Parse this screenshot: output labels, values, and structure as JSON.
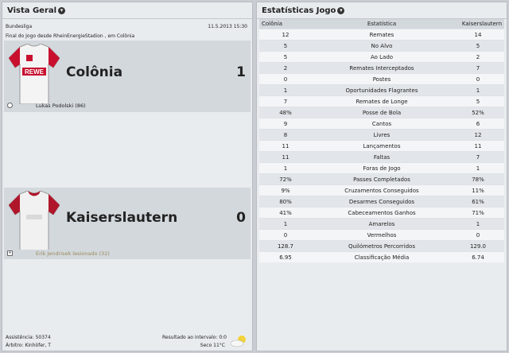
{
  "left_panel": {
    "title": "Vista Geral",
    "competition": "Bundesliga",
    "date_time": "11.5.2013 15:30",
    "venue_line": "Final do Jogo desde RheinEnergieStadion , em Colônia",
    "home": {
      "name": "Colônia",
      "score": "1",
      "shirt_text": "REWE",
      "event": "Lukas Podolski (86)"
    },
    "away": {
      "name": "Kaiserslautern",
      "score": "0",
      "event": "Erik Jendrisek lesionado (32)"
    },
    "attendance": "Assistência: 50374",
    "referee": "Árbitro: Kinhöfer, T",
    "halftime": "Resultado ao intervalo: 0:0",
    "weather": "Seco 11°C"
  },
  "right_panel": {
    "title": "Estatísticas Jogo",
    "columns": [
      "Colônia",
      "Estatística",
      "Kaiserslautern"
    ],
    "rows": [
      [
        "12",
        "Remates",
        "14"
      ],
      [
        "5",
        "No Alvo",
        "5"
      ],
      [
        "5",
        "Ao Lado",
        "2"
      ],
      [
        "2",
        "Remates Interceptados",
        "7"
      ],
      [
        "0",
        "Postes",
        "0"
      ],
      [
        "1",
        "Oportunidades Flagrantes",
        "1"
      ],
      [
        "7",
        "Remates de Longe",
        "5"
      ],
      [
        "48%",
        "Posse de Bola",
        "52%"
      ],
      [
        "9",
        "Cantos",
        "6"
      ],
      [
        "8",
        "Livres",
        "12"
      ],
      [
        "11",
        "Lançamentos",
        "11"
      ],
      [
        "11",
        "Faltas",
        "7"
      ],
      [
        "1",
        "Foras de Jogo",
        "1"
      ],
      [
        "72%",
        "Passes Completados",
        "78%"
      ],
      [
        "9%",
        "Cruzamentos Conseguidos",
        "11%"
      ],
      [
        "80%",
        "Desarmes Conseguidos",
        "61%"
      ],
      [
        "41%",
        "Cabeceamentos Ganhos",
        "71%"
      ],
      [
        "1",
        "Amarelos",
        "1"
      ],
      [
        "0",
        "Vermelhos",
        "0"
      ],
      [
        "128.7",
        "Quilómetros Percorridos",
        "129.0"
      ],
      [
        "6.95",
        "Classificação Média",
        "6.74"
      ]
    ]
  },
  "icons": {
    "section_toggle": "chevron-down-icon",
    "goal": "ball-icon",
    "injury": "medical-cross-icon",
    "weather": "cloud-sun-icon"
  }
}
